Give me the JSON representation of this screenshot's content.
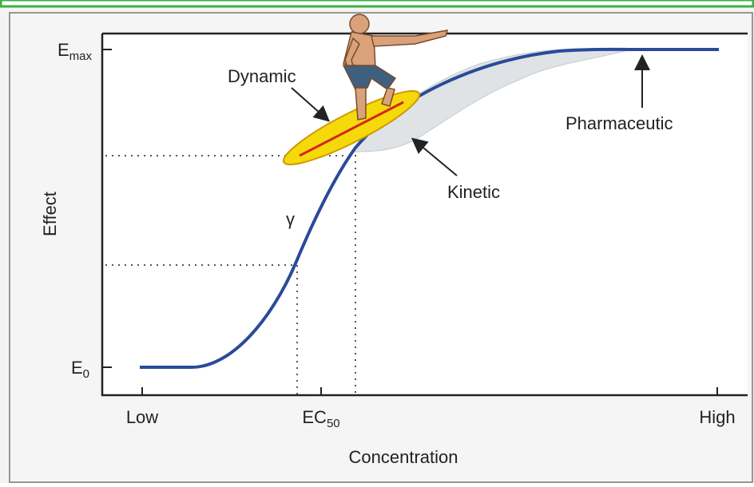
{
  "axes": {
    "y_label": "Effect",
    "x_label": "Concentration",
    "y_ticks": [
      {
        "main": "E",
        "sub": "max"
      },
      {
        "main": "E",
        "sub": "0"
      }
    ],
    "x_low": "Low",
    "x_mid": {
      "main": "EC",
      "sub": "50"
    },
    "x_high": "High"
  },
  "annotations": {
    "dynamic": "Dynamic",
    "kinetic": "Kinetic",
    "pharmaceutic": "Pharmaceutic",
    "gamma": "γ"
  }
}
